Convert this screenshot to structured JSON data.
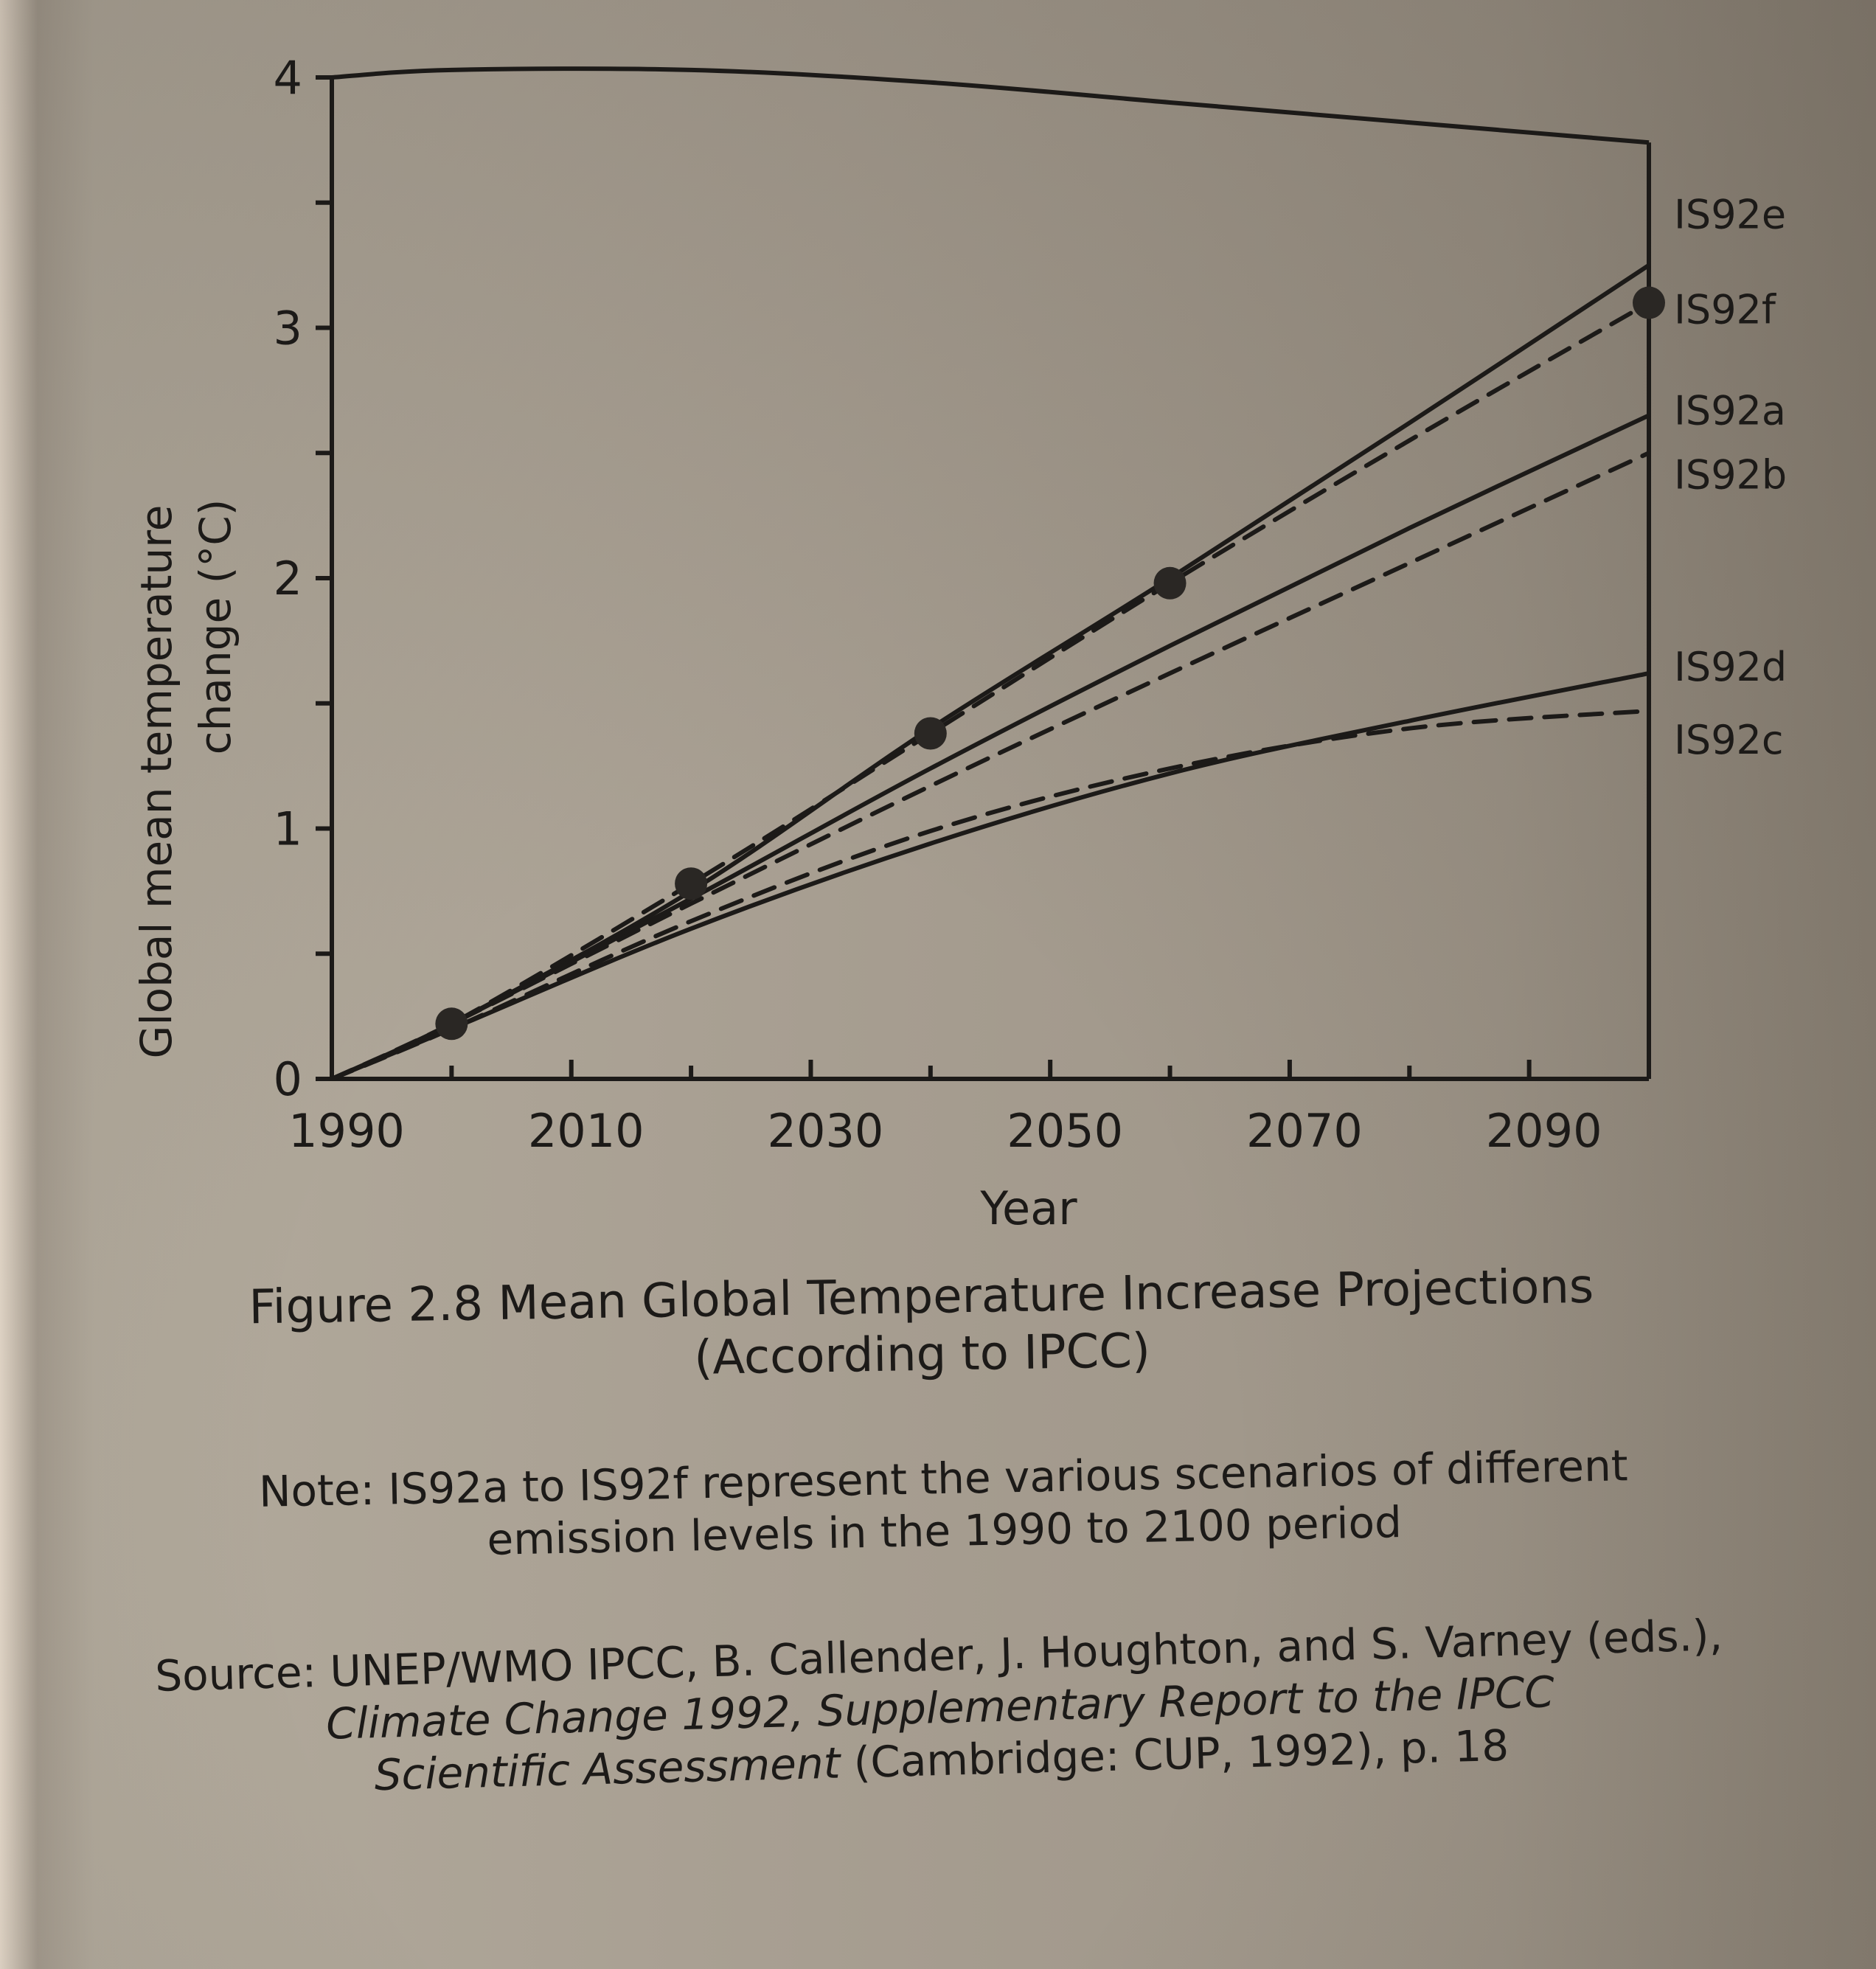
{
  "chart_data": {
    "type": "line",
    "ylabel_line1": "Global mean temperature",
    "ylabel_line2": "change (°C)",
    "xlabel": "Year",
    "xlim": [
      1990,
      2100
    ],
    "ylim": [
      0,
      4
    ],
    "x_ticks": [
      1990,
      2010,
      2030,
      2050,
      2070,
      2090
    ],
    "y_ticks": [
      0,
      1,
      2,
      3,
      4
    ],
    "grid": false,
    "legend": "inline labels at right end of lines",
    "envelope": {
      "x": [
        1990,
        2000,
        2020,
        2040,
        2060,
        2080,
        2090,
        2100
      ],
      "y": [
        4.0,
        4.03,
        4.03,
        3.98,
        3.9,
        3.82,
        3.78,
        3.74
      ]
    },
    "series": [
      {
        "name": "IS92e",
        "style": "solid",
        "x": [
          1990,
          2000,
          2020,
          2040,
          2060,
          2080,
          2100
        ],
        "y": [
          0,
          0.22,
          0.75,
          1.4,
          2.0,
          2.62,
          3.25
        ]
      },
      {
        "name": "IS92f",
        "style": "dashed",
        "markers": true,
        "x": [
          1990,
          2000,
          2020,
          2040,
          2060,
          2080,
          2100
        ],
        "y": [
          0,
          0.22,
          0.78,
          1.38,
          1.98,
          2.55,
          3.1
        ]
      },
      {
        "name": "IS92a",
        "style": "solid",
        "x": [
          1990,
          2000,
          2020,
          2040,
          2060,
          2080,
          2100
        ],
        "y": [
          0,
          0.22,
          0.72,
          1.24,
          1.73,
          2.2,
          2.65
        ]
      },
      {
        "name": "IS92b",
        "style": "dashed",
        "x": [
          1990,
          2000,
          2020,
          2040,
          2060,
          2080,
          2100
        ],
        "y": [
          0,
          0.22,
          0.7,
          1.17,
          1.62,
          2.06,
          2.5
        ]
      },
      {
        "name": "IS92d",
        "style": "solid",
        "x": [
          1990,
          2000,
          2020,
          2040,
          2060,
          2080,
          2100
        ],
        "y": [
          0,
          0.2,
          0.6,
          0.94,
          1.22,
          1.43,
          1.62
        ]
      },
      {
        "name": "IS92c",
        "style": "dashed",
        "x": [
          1990,
          2000,
          2020,
          2040,
          2060,
          2080,
          2100
        ],
        "y": [
          0,
          0.2,
          0.63,
          0.99,
          1.24,
          1.4,
          1.47
        ]
      }
    ],
    "markers": {
      "x": [
        2000,
        2020,
        2040,
        2060,
        2100
      ],
      "y": [
        0.22,
        0.78,
        1.38,
        1.98,
        3.1
      ]
    }
  },
  "caption": {
    "title_line1": "Figure 2.8 Mean Global Temperature Increase Projections",
    "title_line2": "(According to IPCC)",
    "note_line1": "Note: IS92a to IS92f represent the various scenarios of different",
    "note_line2": "emission levels in the 1990 to 2100 period",
    "source_line1": "Source: UNEP/WMO IPCC, B. Callender, J. Houghton, and S. Varney (eds.),",
    "source_line2": "Climate Change 1992, Supplementary Report to the IPCC",
    "source_line3_italic": "Scientific Assessment",
    "source_line3_rest": " (Cambridge: CUP, 1992), p. 18"
  },
  "colors": {
    "ink": "#1c1a18",
    "paper": "#a89f92"
  }
}
